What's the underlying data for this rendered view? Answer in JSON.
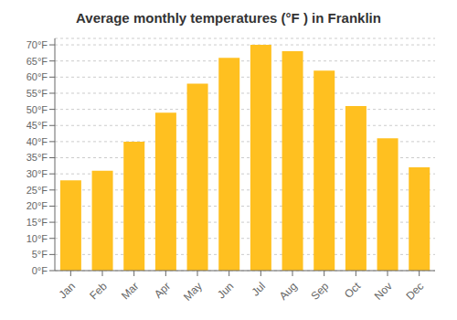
{
  "chart_data": {
    "type": "bar",
    "title": "Average monthly temperatures (°F ) in Franklin",
    "categories": [
      "Jan",
      "Feb",
      "Mar",
      "Apr",
      "May",
      "Jun",
      "Jul",
      "Aug",
      "Sep",
      "Oct",
      "Nov",
      "Dec"
    ],
    "values": [
      28,
      31,
      40,
      49,
      58,
      66,
      70,
      68,
      62,
      51,
      41,
      32
    ],
    "color": "#FFC020",
    "ylim": [
      0,
      72
    ],
    "yticks": [
      {
        "value": 0,
        "label": "0°F"
      },
      {
        "value": 5,
        "label": "5°F"
      },
      {
        "value": 10,
        "label": "10°F"
      },
      {
        "value": 15,
        "label": "15°F"
      },
      {
        "value": 20,
        "label": "20°F"
      },
      {
        "value": 25,
        "label": "25°F"
      },
      {
        "value": 30,
        "label": "30°F"
      },
      {
        "value": 35,
        "label": "35°F"
      },
      {
        "value": 40,
        "label": "40°F"
      },
      {
        "value": 45,
        "label": "45°F"
      },
      {
        "value": 50,
        "label": "50°F"
      },
      {
        "value": 55,
        "label": "55°F"
      },
      {
        "value": 60,
        "label": "60°F"
      },
      {
        "value": 65,
        "label": "65°F"
      },
      {
        "value": 70,
        "label": "70°F"
      }
    ],
    "grid": true
  }
}
